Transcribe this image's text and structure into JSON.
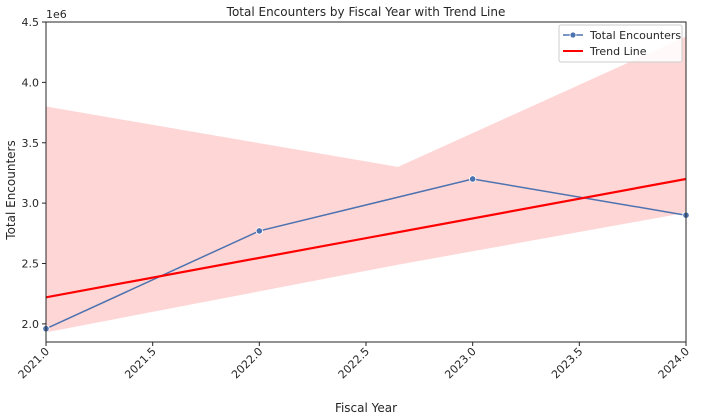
{
  "chart_data": {
    "type": "line",
    "title": "Total Encounters by Fiscal Year with Trend Line",
    "xlabel": "Fiscal Year",
    "ylabel": "Total Encounters",
    "y_offset_label": "1e6",
    "xlim": [
      2021.0,
      2024.0
    ],
    "ylim": [
      1850000,
      4500000
    ],
    "x_ticks": [
      2021.0,
      2021.5,
      2022.0,
      2022.5,
      2023.0,
      2023.5,
      2024.0
    ],
    "x_tick_labels": [
      "2021.0",
      "2021.5",
      "2022.0",
      "2022.5",
      "2023.0",
      "2023.5",
      "2024.0"
    ],
    "y_ticks": [
      2000000,
      2500000,
      3000000,
      3500000,
      4000000,
      4500000
    ],
    "y_tick_labels": [
      "2.0",
      "2.5",
      "3.0",
      "3.5",
      "4.0",
      "4.5"
    ],
    "grid": false,
    "legend_position": "top-right",
    "series": [
      {
        "name": "Total Encounters",
        "color": "#4c72b0",
        "marker": "circle",
        "x": [
          2021,
          2022,
          2023,
          2024
        ],
        "y": [
          1960000,
          2770000,
          3200000,
          2900000
        ]
      },
      {
        "name": "Trend Line",
        "color": "#ff0000",
        "x": [
          2021,
          2024
        ],
        "y": [
          2220000,
          3200000
        ]
      }
    ],
    "confidence_band": {
      "color": "#ff0000",
      "opacity": 0.16,
      "x": [
        2021.0,
        2022.65,
        2024.0
      ],
      "upper": [
        3800000,
        3300000,
        4380000
      ],
      "lower": [
        1930000,
        2490000,
        2920000
      ]
    }
  }
}
